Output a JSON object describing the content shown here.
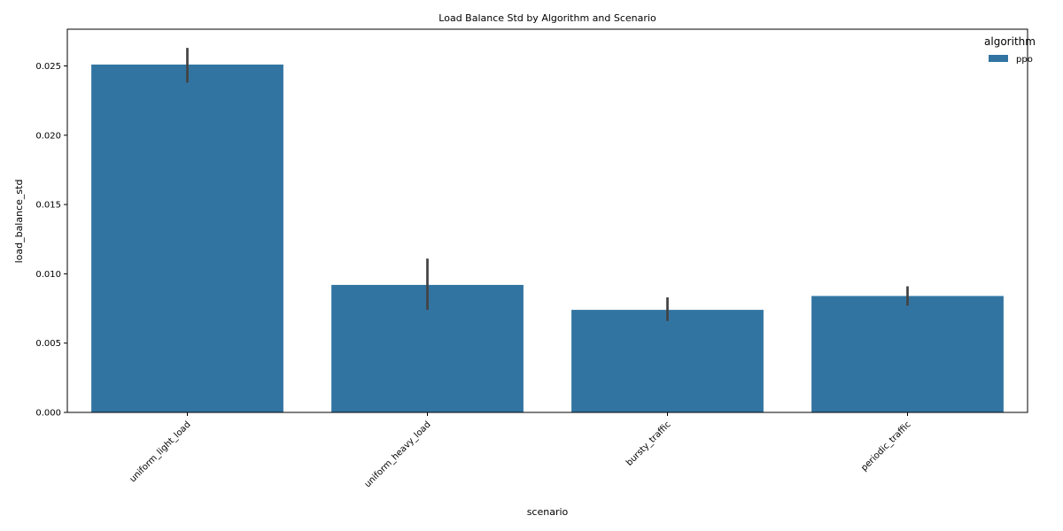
{
  "chart_data": {
    "type": "bar",
    "title": "Load Balance Std by Algorithm and Scenario",
    "xlabel": "scenario",
    "ylabel": "load_balance_std",
    "categories": [
      "uniform_light_load",
      "uniform_heavy_load",
      "bursty_traffic",
      "periodic_traffic"
    ],
    "series": [
      {
        "name": "ppo",
        "color": "#3274a1",
        "values": [
          0.0251,
          0.0092,
          0.0074,
          0.0084
        ],
        "error_low": [
          0.0238,
          0.0074,
          0.0066,
          0.0077
        ],
        "error_high": [
          0.0263,
          0.0111,
          0.0083,
          0.0091
        ]
      }
    ],
    "ylim": [
      0,
      0.02765
    ],
    "yticks": [
      0.0,
      0.005,
      0.01,
      0.015,
      0.02,
      0.025
    ],
    "ytick_labels": [
      "0.000",
      "0.005",
      "0.010",
      "0.015",
      "0.020",
      "0.025"
    ],
    "legend": {
      "title": "algorithm",
      "placement": "top-right"
    },
    "grid": false
  }
}
